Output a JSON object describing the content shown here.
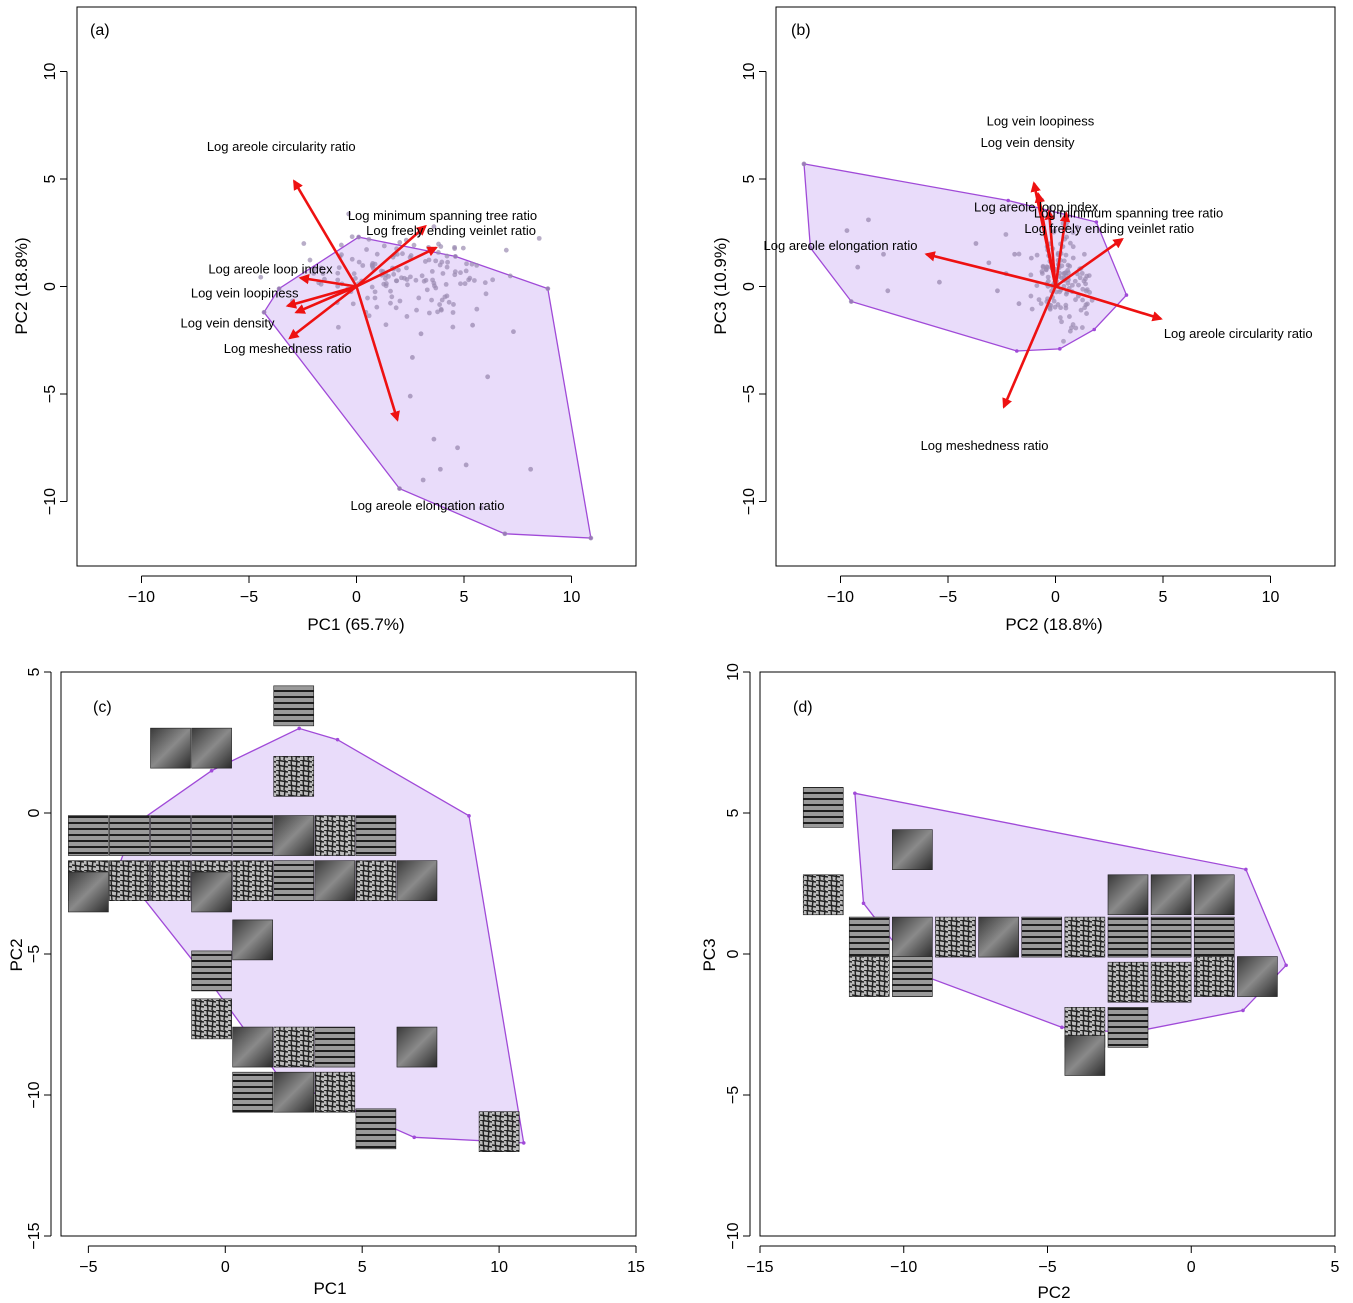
{
  "colors": {
    "hull_fill": "#e9dcfa",
    "hull_stroke": "#a04ad8",
    "arrow": "#ee1111",
    "points": "#9a8ab0"
  },
  "chart_data": [
    {
      "type": "scatter",
      "panel_label": "(a)",
      "xlabel": "PC1 (65.7%)",
      "ylabel": "PC2 (18.8%)",
      "xlim": [
        -13,
        13
      ],
      "ylim": [
        -13,
        13
      ],
      "xticks": [
        -10,
        -5,
        0,
        5,
        10
      ],
      "yticks": [
        -10,
        -5,
        0,
        5,
        10
      ],
      "xtick_labels": [
        "−10",
        "−5",
        "0",
        "5",
        "10"
      ],
      "ytick_labels": [
        "−10",
        "−5",
        "0",
        "5",
        "10"
      ],
      "hull": [
        [
          -4.3,
          -1.2
        ],
        [
          -3.6,
          -0.1
        ],
        [
          0.1,
          2.3
        ],
        [
          4.6,
          1.4
        ],
        [
          8.9,
          -0.1
        ],
        [
          10.9,
          -11.7
        ],
        [
          6.9,
          -11.5
        ],
        [
          2.0,
          -9.4
        ]
      ],
      "point_cloud": {
        "center": [
          2.4,
          0.6
        ],
        "sx": 2.2,
        "sy": 1.0,
        "n": 150
      },
      "points": [
        [
          -4.3,
          -1.2
        ],
        [
          -3.6,
          -0.1
        ],
        [
          0.1,
          2.3
        ],
        [
          4.6,
          1.4
        ],
        [
          8.9,
          -0.1
        ],
        [
          10.9,
          -11.7
        ],
        [
          6.9,
          -11.5
        ],
        [
          2.0,
          -9.4
        ],
        [
          2.6,
          -3.3
        ],
        [
          3.0,
          -2.2
        ],
        [
          2.5,
          -5.1
        ],
        [
          3.6,
          -7.1
        ],
        [
          4.7,
          -7.5
        ],
        [
          3.1,
          -9.0
        ],
        [
          5.1,
          -8.3
        ],
        [
          8.1,
          -8.5
        ],
        [
          5.8,
          -10.3
        ],
        [
          3.9,
          -8.5
        ],
        [
          6.1,
          -4.2
        ],
        [
          7.3,
          -2.1
        ],
        [
          5.4,
          -1.8
        ]
      ],
      "arrows": [
        {
          "label": "Log areole circularity ratio",
          "end": [
            -2.9,
            4.9
          ],
          "label_at": [
            -3.5,
            6.3
          ]
        },
        {
          "label": "Log minimum spanning tree ratio",
          "end": [
            3.2,
            2.8
          ],
          "label_at": [
            4.0,
            3.1
          ]
        },
        {
          "label": "Log freely ending veinlet ratio",
          "end": [
            3.7,
            1.8
          ],
          "label_at": [
            4.4,
            2.4
          ]
        },
        {
          "label": "Log areole loop index",
          "end": [
            -2.6,
            0.4
          ],
          "label_at": [
            -4.0,
            0.6
          ]
        },
        {
          "label": "Log vein loopiness",
          "end": [
            -3.2,
            -0.9
          ],
          "label_at": [
            -5.2,
            -0.5
          ]
        },
        {
          "label": "Log vein density",
          "end": [
            -2.8,
            -1.2
          ],
          "label_at": [
            -6.0,
            -1.9
          ]
        },
        {
          "label": "Log meshedness ratio",
          "end": [
            -3.1,
            -2.4
          ],
          "label_at": [
            -3.2,
            -3.1
          ]
        },
        {
          "label": "Log areole elongation ratio",
          "end": [
            1.9,
            -6.2
          ],
          "label_at": [
            3.3,
            -10.4
          ]
        }
      ]
    },
    {
      "type": "scatter",
      "panel_label": "(b)",
      "xlabel": "PC2 (18.8%)",
      "ylabel": "PC3 (10.9%)",
      "xlim": [
        -13,
        13
      ],
      "ylim": [
        -13,
        13
      ],
      "xticks": [
        -10,
        -5,
        0,
        5,
        10
      ],
      "yticks": [
        -10,
        -5,
        0,
        5,
        10
      ],
      "xtick_labels": [
        "−10",
        "−5",
        "0",
        "5",
        "10"
      ],
      "ytick_labels": [
        "−10",
        "−5",
        "0",
        "5",
        "10"
      ],
      "hull": [
        [
          -11.7,
          5.7
        ],
        [
          -2.2,
          4.0
        ],
        [
          1.9,
          3.0
        ],
        [
          3.3,
          -0.4
        ],
        [
          1.8,
          -2.0
        ],
        [
          0.2,
          -2.9
        ],
        [
          -1.8,
          -3.0
        ],
        [
          -9.5,
          -0.7
        ],
        [
          -11.4,
          1.8
        ]
      ],
      "point_cloud": {
        "center": [
          0.3,
          0.3
        ],
        "sx": 0.7,
        "sy": 1.2,
        "n": 140
      },
      "points": [
        [
          -11.7,
          5.7
        ],
        [
          -11.4,
          1.8
        ],
        [
          -9.5,
          -0.7
        ],
        [
          -8.7,
          3.1
        ],
        [
          -9.7,
          2.6
        ],
        [
          -9.2,
          0.9
        ],
        [
          -8.0,
          1.5
        ],
        [
          -7.8,
          -0.2
        ],
        [
          -5.4,
          0.2
        ],
        [
          -3.7,
          2.0
        ],
        [
          -3.1,
          1.1
        ],
        [
          -2.7,
          -0.2
        ],
        [
          -1.9,
          1.5
        ],
        [
          -1.7,
          -0.8
        ],
        [
          -2.3,
          0.6
        ]
      ],
      "arrows": [
        {
          "label": "Log vein loopiness",
          "end": [
            -1.0,
            4.8
          ],
          "label_at": [
            -0.7,
            7.5
          ]
        },
        {
          "label": "Log vein density",
          "end": [
            -0.8,
            4.3
          ],
          "label_at": [
            -1.3,
            6.5
          ]
        },
        {
          "label": "Log areole loop index",
          "end": [
            -0.3,
            3.5
          ],
          "label_at": [
            -0.9,
            3.5
          ]
        },
        {
          "label": "Log minimum spanning tree ratio",
          "end": [
            0.5,
            3.4
          ],
          "label_at": [
            3.4,
            3.2
          ]
        },
        {
          "label": "Log freely ending veinlet ratio",
          "end": [
            3.1,
            2.2
          ],
          "label_at": [
            2.5,
            2.5
          ]
        },
        {
          "label": "Log areole elongation ratio",
          "end": [
            -6.0,
            1.5
          ],
          "label_at": [
            -10.0,
            1.7
          ]
        },
        {
          "label": "Log areole circularity ratio",
          "end": [
            4.9,
            -1.5
          ],
          "label_at": [
            8.5,
            -2.4
          ]
        },
        {
          "label": "Log meshedness ratio",
          "end": [
            -2.4,
            -5.6
          ],
          "label_at": [
            -3.3,
            -7.6
          ]
        }
      ]
    },
    {
      "type": "scatter",
      "panel_label": "(c)",
      "xlabel": "PC1",
      "ylabel": "PC2",
      "xlim": [
        -6,
        15
      ],
      "ylim": [
        -15,
        5
      ],
      "xticks": [
        -5,
        0,
        5,
        10,
        15
      ],
      "yticks": [
        -15,
        -10,
        -5,
        0,
        5
      ],
      "xtick_labels": [
        "−5",
        "0",
        "5",
        "10",
        "15"
      ],
      "ytick_labels": [
        "−15",
        "−10",
        "−5",
        "0",
        "5"
      ],
      "hull": [
        [
          -3.3,
          -0.4
        ],
        [
          -0.5,
          1.5
        ],
        [
          2.7,
          3.0
        ],
        [
          4.1,
          2.6
        ],
        [
          8.9,
          -0.1
        ],
        [
          10.9,
          -11.7
        ],
        [
          6.9,
          -11.5
        ],
        [
          2.0,
          -9.4
        ],
        [
          -0.4,
          -6.2
        ],
        [
          -3.9,
          -1.9
        ]
      ],
      "thumbnails": [
        [
          -5.0,
          -0.8
        ],
        [
          -5.0,
          -2.4
        ],
        [
          -5.0,
          -2.8
        ],
        [
          -3.5,
          -0.8
        ],
        [
          -3.5,
          -2.4
        ],
        [
          -2.0,
          2.3
        ],
        [
          -2.0,
          -0.8
        ],
        [
          -2.0,
          -2.4
        ],
        [
          -0.5,
          2.3
        ],
        [
          -0.5,
          -0.8
        ],
        [
          -0.5,
          -2.4
        ],
        [
          -0.5,
          -2.8
        ],
        [
          1.0,
          -0.8
        ],
        [
          1.0,
          -2.4
        ],
        [
          1.0,
          -4.5
        ],
        [
          2.5,
          3.8
        ],
        [
          2.5,
          1.3
        ],
        [
          2.5,
          -0.8
        ],
        [
          2.5,
          -2.4
        ],
        [
          4.0,
          -0.8
        ],
        [
          4.0,
          -2.4
        ],
        [
          5.5,
          -0.8
        ],
        [
          5.5,
          -2.4
        ],
        [
          7.0,
          -2.4
        ],
        [
          -0.5,
          -5.6
        ],
        [
          -0.5,
          -7.3
        ],
        [
          1.0,
          -8.3
        ],
        [
          1.0,
          -9.9
        ],
        [
          2.5,
          -8.3
        ],
        [
          2.5,
          -9.9
        ],
        [
          4.0,
          -8.3
        ],
        [
          4.0,
          -9.9
        ],
        [
          7.0,
          -8.3
        ],
        [
          5.5,
          -11.2
        ],
        [
          10.0,
          -11.3
        ]
      ]
    },
    {
      "type": "scatter",
      "panel_label": "(d)",
      "xlabel": "PC2",
      "ylabel": "PC3",
      "xlim": [
        -15,
        5
      ],
      "ylim": [
        -10,
        10
      ],
      "xticks": [
        -15,
        -10,
        -5,
        0,
        5
      ],
      "yticks": [
        -10,
        -5,
        0,
        5,
        10
      ],
      "xtick_labels": [
        "−15",
        "−10",
        "−5",
        "0",
        "5"
      ],
      "ytick_labels": [
        "−10",
        "−5",
        "0",
        "5",
        "10"
      ],
      "hull": [
        [
          -11.7,
          5.7
        ],
        [
          1.9,
          3.0
        ],
        [
          3.3,
          -0.4
        ],
        [
          1.8,
          -2.0
        ],
        [
          -2.2,
          -2.8
        ],
        [
          -4.5,
          -2.6
        ],
        [
          -9.5,
          -0.7
        ],
        [
          -11.4,
          1.8
        ]
      ],
      "thumbnails": [
        [
          -12.8,
          5.2
        ],
        [
          -12.8,
          2.1
        ],
        [
          -9.7,
          3.7
        ],
        [
          -11.2,
          0.6
        ],
        [
          -11.2,
          -0.8
        ],
        [
          -9.7,
          0.6
        ],
        [
          -9.7,
          -0.8
        ],
        [
          -8.2,
          0.6
        ],
        [
          -6.7,
          0.6
        ],
        [
          -5.2,
          0.6
        ],
        [
          -3.7,
          0.6
        ],
        [
          -2.2,
          2.1
        ],
        [
          -2.2,
          0.6
        ],
        [
          -2.2,
          -1.0
        ],
        [
          -0.7,
          2.1
        ],
        [
          -0.7,
          0.6
        ],
        [
          -0.7,
          -1.0
        ],
        [
          0.8,
          2.1
        ],
        [
          0.8,
          0.6
        ],
        [
          0.8,
          -0.8
        ],
        [
          2.3,
          -0.8
        ],
        [
          -2.2,
          -2.6
        ],
        [
          -3.7,
          -2.6
        ],
        [
          -3.7,
          -3.6
        ]
      ]
    }
  ]
}
